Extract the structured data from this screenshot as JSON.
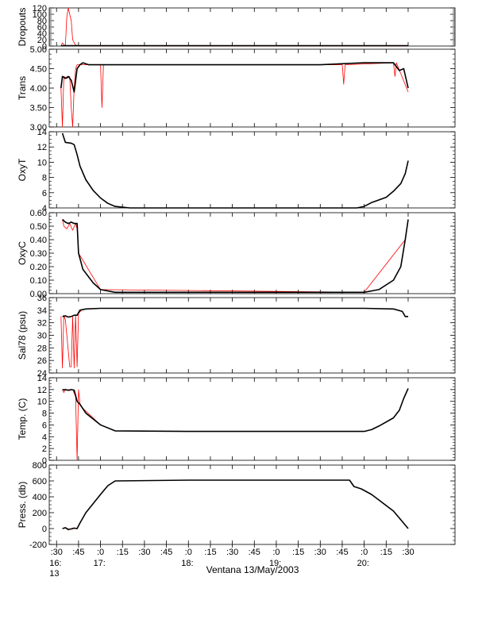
{
  "figure": {
    "xlabel": "Ventana 13/May/2003",
    "x_range": [
      "16:25",
      "21:02"
    ],
    "x_ticks": [
      {
        "t": "16:30",
        "label": ":30"
      },
      {
        "t": "16:45",
        "label": ":45"
      },
      {
        "t": "17:00",
        "label": ":0"
      },
      {
        "t": "17:15",
        "label": ":15"
      },
      {
        "t": "17:30",
        "label": ":30"
      },
      {
        "t": "17:45",
        "label": ":45"
      },
      {
        "t": "18:00",
        "label": ":0"
      },
      {
        "t": "18:15",
        "label": ":15"
      },
      {
        "t": "18:30",
        "label": ":30"
      },
      {
        "t": "18:45",
        "label": ":45"
      },
      {
        "t": "19:00",
        "label": ":0"
      },
      {
        "t": "19:15",
        "label": ":15"
      },
      {
        "t": "19:30",
        "label": ":30"
      },
      {
        "t": "19:45",
        "label": ":45"
      },
      {
        "t": "20:00",
        "label": ":0"
      },
      {
        "t": "20:15",
        "label": ":15"
      },
      {
        "t": "20:30",
        "label": ":30"
      }
    ],
    "hour_labels": [
      {
        "t": "16:30",
        "text": "16:"
      },
      {
        "t": "17:00",
        "text": "17:"
      },
      {
        "t": "18:00",
        "text": "18:"
      },
      {
        "t": "19:00",
        "text": "19:"
      },
      {
        "t": "20:00",
        "text": "20:"
      }
    ],
    "day_label": {
      "t": "16:30",
      "text": "13"
    },
    "colors": {
      "primary": "#000000",
      "raw": "#ff0000",
      "axis": "#000000"
    }
  },
  "chart_data": [
    {
      "type": "line",
      "ylabel": "Dropouts",
      "ylim": [
        0,
        120
      ],
      "yticks": [
        0,
        20,
        40,
        60,
        80,
        100,
        120
      ],
      "series": [
        {
          "color": "#000000",
          "x": [
            "16:33",
            "16:36",
            "16:38",
            "16:40",
            "16:42",
            "16:45",
            "17:00",
            "17:30",
            "18:00",
            "18:30",
            "19:00",
            "19:30",
            "20:00",
            "20:15",
            "20:30"
          ],
          "y": [
            1,
            1,
            1,
            1,
            1,
            1,
            1,
            1,
            1,
            1,
            1,
            1,
            1,
            1,
            1
          ]
        },
        {
          "color": "#ff0000",
          "x": [
            "16:33",
            "16:34",
            "16:36",
            "16:37",
            "16:38",
            "16:39",
            "16:40",
            "16:41",
            "16:42",
            "16:43",
            "16:45",
            "17:00",
            "18:00",
            "19:00",
            "20:00",
            "20:30"
          ],
          "y": [
            0,
            10,
            0,
            90,
            150,
            100,
            80,
            20,
            10,
            3,
            0,
            0,
            0,
            0,
            0,
            0
          ]
        }
      ]
    },
    {
      "type": "line",
      "ylabel": "Trans",
      "ylim": [
        3.0,
        5.0
      ],
      "yticks": [
        3.0,
        3.5,
        4.0,
        4.5,
        5.0
      ],
      "series": [
        {
          "color": "#000000",
          "x": [
            "16:33",
            "16:34",
            "16:36",
            "16:38",
            "16:40",
            "16:42",
            "16:44",
            "16:46",
            "16:48",
            "16:52",
            "17:00",
            "17:30",
            "18:00",
            "18:30",
            "19:00",
            "19:30",
            "20:00",
            "20:10",
            "20:20",
            "20:24",
            "20:27",
            "20:30"
          ],
          "y": [
            4.0,
            4.3,
            4.25,
            4.3,
            4.2,
            3.9,
            4.5,
            4.6,
            4.65,
            4.6,
            4.6,
            4.6,
            4.6,
            4.6,
            4.6,
            4.6,
            4.65,
            4.65,
            4.65,
            4.45,
            4.5,
            4.0
          ]
        },
        {
          "color": "#ff0000",
          "x": [
            "16:33",
            "16:34",
            "16:35",
            "16:37",
            "16:39",
            "16:40",
            "16:41",
            "16:42",
            "16:43",
            "16:44",
            "17:00",
            "17:01",
            "17:02",
            "18:00",
            "19:45",
            "19:46",
            "19:47",
            "20:20",
            "20:21",
            "20:22",
            "20:30"
          ],
          "y": [
            4.0,
            2.9,
            4.3,
            4.25,
            4.3,
            3.5,
            2.7,
            4.0,
            4.5,
            4.6,
            4.6,
            3.5,
            4.6,
            4.6,
            4.6,
            4.1,
            4.6,
            4.65,
            4.3,
            4.65,
            3.9
          ]
        }
      ]
    },
    {
      "type": "line",
      "ylabel": "OxyT",
      "ylim": [
        4,
        14
      ],
      "yticks": [
        4,
        6,
        8,
        10,
        12,
        14
      ],
      "series": [
        {
          "color": "#000000",
          "x": [
            "16:34",
            "16:36",
            "16:40",
            "16:42",
            "16:44",
            "16:46",
            "16:50",
            "16:55",
            "17:00",
            "17:05",
            "17:10",
            "17:20",
            "18:00",
            "19:00",
            "19:55",
            "20:00",
            "20:05",
            "20:15",
            "20:20",
            "20:25",
            "20:28",
            "20:30"
          ],
          "y": [
            13.8,
            12.6,
            12.5,
            12.3,
            11.0,
            9.5,
            7.7,
            6.3,
            5.3,
            4.6,
            4.2,
            4.0,
            4.0,
            4.0,
            4.0,
            4.2,
            4.7,
            5.4,
            6.2,
            7.2,
            8.5,
            10.2
          ]
        }
      ]
    },
    {
      "type": "line",
      "ylabel": "OxyC",
      "ylim": [
        0.0,
        0.6
      ],
      "yticks": [
        0.0,
        0.1,
        0.2,
        0.3,
        0.4,
        0.5,
        0.6
      ],
      "series": [
        {
          "color": "#000000",
          "x": [
            "16:34",
            "16:36",
            "16:38",
            "16:40",
            "16:42",
            "16:44",
            "16:45",
            "16:48",
            "16:55",
            "17:00",
            "17:10",
            "18:00",
            "19:00",
            "20:00",
            "20:10",
            "20:20",
            "20:25",
            "20:28",
            "20:30"
          ],
          "y": [
            0.55,
            0.53,
            0.52,
            0.53,
            0.52,
            0.52,
            0.3,
            0.18,
            0.08,
            0.03,
            0.01,
            0.01,
            0.01,
            0.01,
            0.03,
            0.1,
            0.2,
            0.4,
            0.55
          ]
        },
        {
          "color": "#ff0000",
          "x": [
            "16:34",
            "16:35",
            "16:37",
            "16:39",
            "16:41",
            "16:43",
            "16:44",
            "16:45",
            "17:00",
            "20:00",
            "20:28",
            "20:30"
          ],
          "y": [
            0.55,
            0.5,
            0.48,
            0.52,
            0.47,
            0.52,
            0.48,
            0.3,
            0.03,
            0.01,
            0.4,
            0.55
          ]
        }
      ]
    },
    {
      "type": "line",
      "ylabel": "Sal78 (psu)",
      "ylim": [
        24,
        36
      ],
      "yticks": [
        24,
        26,
        28,
        30,
        32,
        34,
        36
      ],
      "series": [
        {
          "color": "#000000",
          "x": [
            "16:34",
            "16:36",
            "16:38",
            "16:40",
            "16:42",
            "16:44",
            "16:46",
            "16:50",
            "17:00",
            "17:30",
            "18:00",
            "19:00",
            "20:00",
            "20:20",
            "20:26",
            "20:28",
            "20:30"
          ],
          "y": [
            33.0,
            33.1,
            32.9,
            33.0,
            33.2,
            33.2,
            34.0,
            34.2,
            34.3,
            34.3,
            34.3,
            34.3,
            34.3,
            34.2,
            33.8,
            33.0,
            33.0
          ]
        },
        {
          "color": "#ff0000",
          "x": [
            "16:33",
            "16:34",
            "16:35",
            "16:36",
            "16:38",
            "16:39",
            "16:40",
            "16:41",
            "16:42",
            "16:43",
            "16:44",
            "16:45",
            "16:47"
          ],
          "y": [
            33.0,
            24.8,
            33.2,
            32.5,
            27.5,
            25.0,
            25.0,
            33.0,
            24.8,
            33.2,
            25.0,
            33.5,
            34.0
          ]
        }
      ]
    },
    {
      "type": "line",
      "ylabel": "Temp. (C)",
      "ylim": [
        0,
        14
      ],
      "yticks": [
        0,
        2,
        4,
        6,
        8,
        10,
        12,
        14
      ],
      "series": [
        {
          "color": "#000000",
          "x": [
            "16:34",
            "16:38",
            "16:40",
            "16:42",
            "16:44",
            "16:46",
            "16:50",
            "17:00",
            "17:10",
            "18:00",
            "19:00",
            "20:00",
            "20:05",
            "20:10",
            "20:20",
            "20:24",
            "20:27",
            "20:30"
          ],
          "y": [
            12.0,
            11.9,
            12.0,
            11.9,
            10.0,
            9.5,
            8.0,
            6.0,
            5.0,
            4.9,
            4.9,
            4.9,
            5.2,
            5.8,
            7.2,
            8.5,
            10.5,
            12.2
          ]
        },
        {
          "color": "#ff0000",
          "x": [
            "16:34",
            "16:35",
            "16:36",
            "16:38",
            "16:41",
            "16:43",
            "16:44",
            "16:45",
            "16:46",
            "16:48",
            "17:00"
          ],
          "y": [
            12.0,
            11.5,
            12.1,
            11.8,
            12.0,
            10.8,
            0.0,
            12.0,
            9.6,
            8.8,
            6.0
          ]
        }
      ]
    },
    {
      "type": "line",
      "ylabel": "Press. (db)",
      "ylim": [
        -200,
        800
      ],
      "yticks": [
        -200,
        0,
        200,
        400,
        600,
        800
      ],
      "series": [
        {
          "color": "#000000",
          "x": [
            "16:34",
            "16:36",
            "16:38",
            "16:40",
            "16:42",
            "16:44",
            "16:46",
            "16:50",
            "17:00",
            "17:05",
            "17:10",
            "18:00",
            "19:00",
            "19:50",
            "19:53",
            "19:58",
            "20:05",
            "20:10",
            "20:20",
            "20:30"
          ],
          "y": [
            0,
            10,
            -10,
            -5,
            5,
            0,
            70,
            200,
            430,
            540,
            600,
            610,
            610,
            610,
            530,
            500,
            430,
            360,
            220,
            0
          ]
        },
        {
          "color": "#ff0000",
          "x": [
            "16:34",
            "16:36",
            "16:38",
            "16:40",
            "16:42",
            "16:44",
            "16:46"
          ],
          "y": [
            0,
            15,
            -20,
            0,
            10,
            -5,
            70
          ]
        }
      ]
    }
  ]
}
